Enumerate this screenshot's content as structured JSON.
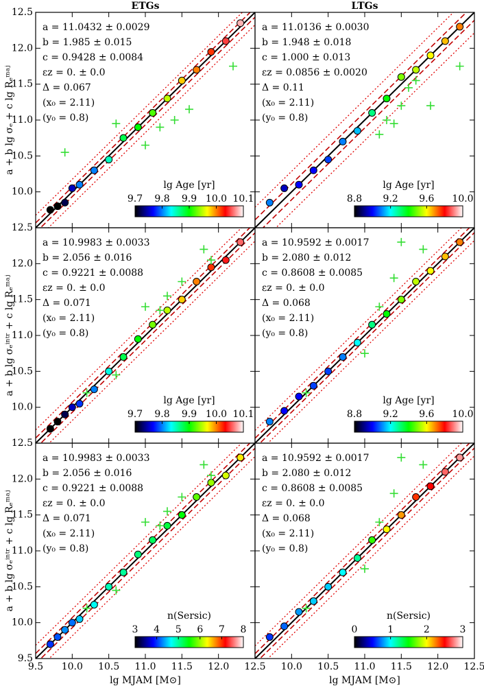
{
  "chart_data": [
    {
      "type": "scatter",
      "title": "ETGs",
      "ylabel": "a + b lg σₑ + c lg Rₑᵐᵃʲ",
      "annotations": [
        "a = 11.0432 ± 0.0029",
        "b = 1.985 ± 0.015",
        "c = 0.9428 ± 0.0084",
        "εz = 0. ± 0.0",
        "Δ = 0.067",
        "(x₀ = 2.11)",
        "(y₀ = 0.8)"
      ],
      "xlim": [
        9.5,
        12.5
      ],
      "ylim": [
        9.5,
        12.5
      ],
      "show_xtick_labels": false,
      "show_ytick_labels": true,
      "xticks": [
        10,
        10.5,
        11,
        11.5,
        12
      ],
      "yticks": [
        {
          "value": 10,
          "label": "10.0"
        },
        10.5,
        {
          "value": 11,
          "label": "11.0"
        },
        11.5,
        {
          "value": 12,
          "label": "12.0"
        },
        12.5
      ],
      "x": [
        9.7,
        9.8,
        9.9,
        10.0,
        10.1,
        10.3,
        10.5,
        10.7,
        10.9,
        11.1,
        11.3,
        11.5,
        11.7,
        11.9,
        12.1,
        12.3
      ],
      "y": [
        9.75,
        9.8,
        9.85,
        10.05,
        10.1,
        10.3,
        10.45,
        10.75,
        10.9,
        11.1,
        11.3,
        11.55,
        11.7,
        11.95,
        12.1,
        12.35
      ],
      "c": [
        9.7,
        9.7,
        9.72,
        9.75,
        9.8,
        9.8,
        9.85,
        9.88,
        9.9,
        9.92,
        9.95,
        9.98,
        10.0,
        10.02,
        10.05,
        10.08
      ],
      "outliers": {
        "x": [
          9.9,
          10.6,
          11.2,
          11.4,
          11.6,
          12.2,
          11.0
        ],
        "y": [
          10.55,
          10.95,
          10.9,
          11.0,
          11.15,
          11.75,
          10.65
        ],
        "color": "#33dd33"
      },
      "fit_offsets": [
        0,
        0.067,
        0.174
      ],
      "colorbar": {
        "label": "lg Age [yr]",
        "lim": [
          9.7,
          10.1
        ],
        "ticks": [
          9.7,
          9.8,
          9.9,
          {
            "value": 10,
            "label": "10.0"
          },
          10.1
        ],
        "colormap": [
          "#000000",
          "#0000ff",
          "#00ffff",
          "#00ff00",
          "#ffff00",
          "#ff0000",
          "#ffffff"
        ]
      }
    },
    {
      "type": "scatter",
      "title": "LTGs",
      "annotations": [
        "a = 11.0136 ± 0.0030",
        "b = 1.948 ± 0.018",
        "c = 1.000 ± 0.013",
        "εz = 0.0856 ± 0.0020",
        "Δ = 0.11",
        "(x₀ = 2.11)",
        "(y₀ = 0.8)"
      ],
      "xlim": [
        9.5,
        12.5
      ],
      "ylim": [
        9.5,
        12.5
      ],
      "show_xtick_labels": false,
      "show_ytick_labels": false,
      "xticks": [
        10,
        10.5,
        11,
        11.5,
        12
      ],
      "yticks": [
        10,
        10.5,
        11,
        11.5,
        12
      ],
      "x": [
        9.7,
        9.9,
        10.1,
        10.3,
        10.5,
        10.7,
        10.9,
        11.1,
        11.3,
        11.5,
        11.7,
        11.9,
        12.1,
        12.3
      ],
      "y": [
        9.85,
        10.05,
        10.1,
        10.3,
        10.45,
        10.7,
        10.85,
        11.1,
        11.3,
        11.6,
        11.7,
        11.9,
        12.1,
        12.3
      ],
      "c": [
        9.1,
        8.95,
        9.0,
        9.0,
        9.05,
        9.1,
        9.15,
        9.3,
        9.4,
        9.5,
        9.55,
        9.6,
        9.65,
        9.7
      ],
      "outliers": {
        "x": [
          11.3,
          11.5,
          11.6,
          11.7,
          11.9,
          12.3,
          11.2,
          11.4
        ],
        "y": [
          11.0,
          11.2,
          11.45,
          11.55,
          11.2,
          11.75,
          10.8,
          10.95
        ],
        "color": "#33dd33"
      },
      "fit_offsets": [
        0,
        0.11,
        0.286
      ],
      "colorbar": {
        "label": "lg Age [yr]",
        "lim": [
          8.8,
          10.0
        ],
        "ticks": [
          8.8,
          9.2,
          9.6,
          {
            "value": 10,
            "label": "10.0"
          }
        ],
        "colormap": [
          "#000000",
          "#0000ff",
          "#00ffff",
          "#00ff00",
          "#ffff00",
          "#ff0000",
          "#ffffff"
        ]
      }
    },
    {
      "type": "scatter",
      "ylabel": "a + b lg σₑⁱⁿᵗʳ + c lg Rₑᵐᵃʲ",
      "annotations": [
        "a = 10.9983 ± 0.0033",
        "b = 2.056 ± 0.016",
        "c = 0.9221 ± 0.0088",
        "εz = 0. ± 0.0",
        "Δ = 0.071",
        "(x₀ = 2.11)",
        "(y₀ = 0.8)"
      ],
      "xlim": [
        9.5,
        12.5
      ],
      "ylim": [
        9.5,
        12.5
      ],
      "show_xtick_labels": false,
      "show_ytick_labels": true,
      "xticks": [
        10,
        10.5,
        11,
        11.5,
        12
      ],
      "yticks": [
        {
          "value": 10,
          "label": "10.0"
        },
        10.5,
        {
          "value": 11,
          "label": "11.0"
        },
        11.5,
        {
          "value": 12,
          "label": "12.0"
        },
        12.5
      ],
      "x": [
        9.7,
        9.8,
        9.9,
        10.0,
        10.1,
        10.3,
        10.5,
        10.7,
        10.9,
        11.1,
        11.3,
        11.5,
        11.7,
        11.9,
        12.1,
        12.3
      ],
      "y": [
        9.7,
        9.8,
        9.9,
        10.0,
        10.05,
        10.25,
        10.5,
        10.7,
        10.95,
        11.15,
        11.35,
        11.5,
        11.75,
        11.95,
        12.05,
        12.3
      ],
      "c": [
        9.7,
        9.7,
        9.72,
        9.75,
        9.78,
        9.8,
        9.84,
        9.88,
        9.9,
        9.93,
        9.95,
        9.98,
        10.0,
        10.02,
        10.04,
        10.06
      ],
      "outliers": {
        "x": [
          10.6,
          11.3,
          11.5,
          11.0,
          11.8,
          11.9,
          10.2,
          11.2
        ],
        "y": [
          10.45,
          11.55,
          11.75,
          11.4,
          12.2,
          12.05,
          10.2,
          11.35
        ],
        "color": "#33dd33"
      },
      "fit_offsets": [
        0,
        0.071,
        0.185
      ],
      "colorbar": {
        "label": "lg Age [yr]",
        "lim": [
          9.7,
          10.1
        ],
        "ticks": [
          9.7,
          9.8,
          9.9,
          {
            "value": 10,
            "label": "10.0"
          },
          10.1
        ],
        "colormap": [
          "#000000",
          "#0000ff",
          "#00ffff",
          "#00ff00",
          "#ffff00",
          "#ff0000",
          "#ffffff"
        ]
      }
    },
    {
      "type": "scatter",
      "annotations": [
        "a = 10.9592 ± 0.0017",
        "b = 2.080 ± 0.012",
        "c = 0.8608 ± 0.0085",
        "εz = 0. ± 0.0",
        "Δ = 0.068",
        "(x₀ = 2.11)",
        "(y₀ = 0.8)"
      ],
      "xlim": [
        9.5,
        12.5
      ],
      "ylim": [
        9.5,
        12.5
      ],
      "show_xtick_labels": false,
      "show_ytick_labels": false,
      "xticks": [
        10,
        10.5,
        11,
        11.5,
        12
      ],
      "yticks": [
        10,
        10.5,
        11,
        11.5,
        12
      ],
      "x": [
        9.7,
        9.9,
        10.1,
        10.3,
        10.5,
        10.7,
        10.9,
        11.1,
        11.3,
        11.5,
        11.7,
        11.9,
        12.1,
        12.3
      ],
      "y": [
        9.8,
        9.95,
        10.15,
        10.3,
        10.5,
        10.7,
        10.9,
        11.15,
        11.3,
        11.5,
        11.75,
        11.9,
        12.1,
        12.3
      ],
      "c": [
        9.1,
        9.0,
        9.0,
        9.05,
        9.05,
        9.1,
        9.2,
        9.3,
        9.4,
        9.5,
        9.55,
        9.6,
        9.65,
        9.7
      ],
      "outliers": {
        "x": [
          11.5,
          11.8,
          11.2,
          11.0,
          10.2,
          11.4
        ],
        "y": [
          12.3,
          12.2,
          11.4,
          10.75,
          10.2,
          11.8
        ],
        "color": "#33dd33"
      },
      "fit_offsets": [
        0,
        0.068,
        0.177
      ],
      "colorbar": {
        "label": "lg Age [yr]",
        "lim": [
          8.8,
          10.0
        ],
        "ticks": [
          8.8,
          9.2,
          9.6,
          {
            "value": 10,
            "label": "10.0"
          }
        ],
        "colormap": [
          "#000000",
          "#0000ff",
          "#00ffff",
          "#00ff00",
          "#ffff00",
          "#ff0000",
          "#ffffff"
        ]
      }
    },
    {
      "type": "scatter",
      "ylabel": "a + b lg σₑⁱⁿᵗʳ + c lg Rₑᵐᵃʲ",
      "xlabel": "lg MJAM [M⊙]",
      "annotations": [
        "a = 10.9983 ± 0.0033",
        "b = 2.056 ± 0.016",
        "c = 0.9221 ± 0.0088",
        "εz = 0. ± 0.0",
        "Δ = 0.071",
        "(x₀ = 2.11)",
        "(y₀ = 0.8)"
      ],
      "xlim": [
        9.5,
        12.5
      ],
      "ylim": [
        9.5,
        12.5
      ],
      "show_xtick_labels": true,
      "show_ytick_labels": true,
      "xticks": [
        9.5,
        {
          "value": 10,
          "label": "10.0"
        },
        10.5,
        {
          "value": 11,
          "label": "11.0"
        },
        11.5,
        {
          "value": 12,
          "label": "12.0"
        },
        12.5
      ],
      "yticks": [
        9.5,
        {
          "value": 10,
          "label": "10.0"
        },
        10.5,
        {
          "value": 11,
          "label": "11.0"
        },
        11.5,
        {
          "value": 12,
          "label": "12.0"
        },
        12.5
      ],
      "x": [
        9.7,
        9.8,
        9.9,
        10.0,
        10.1,
        10.3,
        10.5,
        10.7,
        10.9,
        11.1,
        11.3,
        11.5,
        11.7,
        11.9,
        12.1,
        12.3
      ],
      "y": [
        9.7,
        9.8,
        9.9,
        10.0,
        10.05,
        10.25,
        10.5,
        10.7,
        10.95,
        11.15,
        11.35,
        11.5,
        11.75,
        11.95,
        12.05,
        12.3
      ],
      "c": [
        4.0,
        4.1,
        4.3,
        4.2,
        4.5,
        4.7,
        4.9,
        5.0,
        5.1,
        5.2,
        5.3,
        5.5,
        5.8,
        6.0,
        6.2,
        6.4
      ],
      "outliers": {
        "x": [
          10.6,
          11.3,
          11.5,
          11.0,
          11.8,
          11.9,
          10.2,
          11.2
        ],
        "y": [
          10.45,
          11.55,
          11.75,
          11.4,
          12.2,
          12.05,
          10.2,
          11.35
        ],
        "color": "#33dd33"
      },
      "fit_offsets": [
        0,
        0.071,
        0.185
      ],
      "colorbar": {
        "label": "n(Sersic)",
        "lim": [
          3,
          8
        ],
        "ticks": [
          3,
          4,
          5,
          6,
          7,
          8
        ],
        "colormap": [
          "#000000",
          "#0000ff",
          "#00ffff",
          "#00ff00",
          "#ffff00",
          "#ff0000",
          "#ffffff"
        ]
      }
    },
    {
      "type": "scatter",
      "xlabel": "lg MJAM [M⊙]",
      "annotations": [
        "a = 10.9592 ± 0.0017",
        "b = 2.080 ± 0.012",
        "c = 0.8608 ± 0.0085",
        "εz = 0. ± 0.0",
        "Δ = 0.068",
        "(x₀ = 2.11)",
        "(y₀ = 0.8)"
      ],
      "xlim": [
        9.5,
        12.5
      ],
      "ylim": [
        9.5,
        12.5
      ],
      "show_xtick_labels": true,
      "show_ytick_labels": false,
      "xticks": [
        {
          "value": 10,
          "label": "10.0"
        },
        10.5,
        {
          "value": 11,
          "label": "11.0"
        },
        11.5,
        {
          "value": 12,
          "label": "12.0"
        },
        12.5
      ],
      "yticks": [
        10,
        10.5,
        11,
        11.5,
        12
      ],
      "x": [
        9.7,
        9.9,
        10.1,
        10.3,
        10.5,
        10.7,
        10.9,
        11.1,
        11.3,
        11.5,
        11.7,
        11.9,
        12.1,
        12.3
      ],
      "y": [
        9.8,
        9.95,
        10.15,
        10.3,
        10.5,
        10.7,
        10.9,
        11.15,
        11.3,
        11.5,
        11.75,
        11.9,
        12.1,
        12.3
      ],
      "c": [
        0.6,
        0.7,
        0.8,
        0.9,
        0.9,
        1.0,
        1.2,
        1.6,
        2.0,
        2.2,
        2.4,
        2.5,
        2.7,
        2.8
      ],
      "outliers": {
        "x": [
          11.5,
          11.8,
          11.2,
          11.0,
          10.2,
          11.4
        ],
        "y": [
          12.3,
          12.2,
          11.4,
          10.75,
          10.2,
          11.8
        ],
        "color": "#33dd33"
      },
      "fit_offsets": [
        0,
        0.068,
        0.177
      ],
      "colorbar": {
        "label": "n(Sersic)",
        "lim": [
          0,
          3
        ],
        "ticks": [
          0,
          1,
          2,
          3
        ],
        "colormap": [
          "#000000",
          "#0000ff",
          "#00ffff",
          "#00ff00",
          "#ffff00",
          "#ff0000",
          "#ffffff"
        ]
      }
    }
  ]
}
